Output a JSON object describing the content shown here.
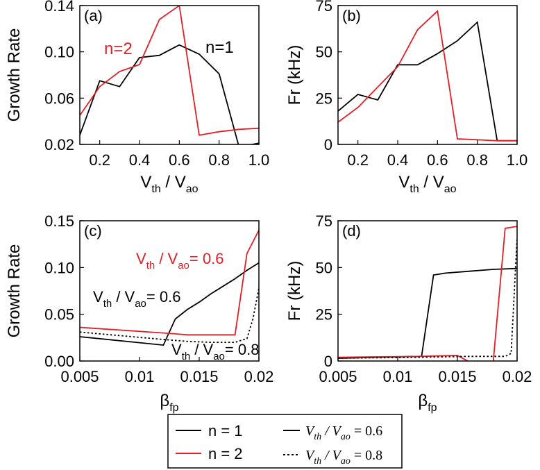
{
  "colors": {
    "n1": "#000000",
    "n2": "#e41e26"
  },
  "chart_data": [
    {
      "type": "line",
      "panel_label": "(a)",
      "ylabel": "Growth Rate",
      "xlabel_main": "V",
      "xlabel_sub1": "th",
      "xlabel_mid": " / V",
      "xlabel_sub2": "ao",
      "xlim": [
        0.1,
        1.0
      ],
      "ylim": [
        0.02,
        0.14
      ],
      "xticks": [
        0.2,
        0.4,
        0.6,
        0.8,
        1.0
      ],
      "xtick_labels": [
        "0.2",
        "0.4",
        "0.6",
        "0.8",
        "1.0"
      ],
      "yticks": [
        0.02,
        0.06,
        0.1,
        0.14
      ],
      "ytick_labels": [
        "0.02",
        "0.06",
        "0.10",
        "0.14"
      ],
      "annotations": [
        {
          "text": "n=2",
          "color": "#e41e26"
        },
        {
          "text": "n=1",
          "color": "#000000"
        }
      ],
      "series": [
        {
          "color": "#000000",
          "dash": "solid",
          "x": [
            0.1,
            0.2,
            0.3,
            0.4,
            0.5,
            0.6,
            0.7,
            0.8,
            0.9,
            1.0
          ],
          "y": [
            0.028,
            0.075,
            0.07,
            0.095,
            0.097,
            0.106,
            0.098,
            0.081,
            0.018,
            0.021
          ]
        },
        {
          "color": "#e41e26",
          "dash": "solid",
          "x": [
            0.1,
            0.2,
            0.3,
            0.4,
            0.5,
            0.6,
            0.7,
            0.8,
            0.9,
            1.0
          ],
          "y": [
            0.045,
            0.07,
            0.083,
            0.089,
            0.128,
            0.14,
            0.028,
            0.031,
            0.033,
            0.034
          ]
        }
      ]
    },
    {
      "type": "line",
      "panel_label": "(b)",
      "ylabel": "Fr (kHz)",
      "xlabel_main": "V",
      "xlabel_sub1": "th",
      "xlabel_mid": " / V",
      "xlabel_sub2": "ao",
      "xlim": [
        0.1,
        1.0
      ],
      "ylim": [
        0,
        75
      ],
      "xticks": [
        0.2,
        0.4,
        0.6,
        0.8,
        1.0
      ],
      "xtick_labels": [
        "0.2",
        "0.4",
        "0.6",
        "0.8",
        "1.0"
      ],
      "yticks": [
        0,
        25,
        50,
        75
      ],
      "ytick_labels": [
        "0",
        "25",
        "50",
        "75"
      ],
      "annotations": [],
      "series": [
        {
          "color": "#000000",
          "dash": "solid",
          "x": [
            0.1,
            0.2,
            0.3,
            0.4,
            0.5,
            0.6,
            0.7,
            0.8,
            0.9,
            1.0
          ],
          "y": [
            18,
            27,
            24,
            43,
            43,
            49,
            56,
            66,
            2,
            2
          ]
        },
        {
          "color": "#e41e26",
          "dash": "solid",
          "x": [
            0.1,
            0.2,
            0.3,
            0.4,
            0.5,
            0.6,
            0.7,
            0.8,
            0.9,
            1.0
          ],
          "y": [
            12,
            20,
            31,
            42,
            62,
            72,
            3,
            2.5,
            2,
            2
          ]
        }
      ]
    },
    {
      "type": "line",
      "panel_label": "(c)",
      "ylabel": "Growth Rate",
      "xlabel_main": "β",
      "xlabel_sub1": "fp",
      "xlabel_mid": "",
      "xlabel_sub2": "",
      "xlim": [
        0.005,
        0.02
      ],
      "ylim": [
        0,
        0.15
      ],
      "xticks": [
        0.005,
        0.01,
        0.015,
        0.02
      ],
      "xtick_labels": [
        "0.005",
        "0.01",
        "0.015",
        "0.02"
      ],
      "yticks": [
        0,
        0.05,
        0.1,
        0.15
      ],
      "ytick_labels": [
        "0.00",
        "0.05",
        "0.10",
        "0.15"
      ],
      "annotations": [
        {
          "text": "V_th / V_ao = 0.6",
          "color": "#e41e26"
        },
        {
          "text": "V_th / V_ao = 0.6",
          "color": "#000000"
        },
        {
          "text": "V_th / V_ao = 0.8",
          "color": "#000000"
        }
      ],
      "series": [
        {
          "color": "#000000",
          "dash": "solid",
          "x": [
            0.005,
            0.012,
            0.013,
            0.014,
            0.015,
            0.016,
            0.017,
            0.018,
            0.019,
            0.02
          ],
          "y": [
            0.026,
            0.017,
            0.045,
            0.055,
            0.063,
            0.072,
            0.08,
            0.088,
            0.097,
            0.105
          ]
        },
        {
          "color": "#e41e26",
          "dash": "solid",
          "x": [
            0.005,
            0.012,
            0.013,
            0.014,
            0.015,
            0.016,
            0.017,
            0.018,
            0.019,
            0.02
          ],
          "y": [
            0.036,
            0.03,
            0.029,
            0.028,
            0.028,
            0.028,
            0.028,
            0.028,
            0.115,
            0.14
          ]
        },
        {
          "color": "#000000",
          "dash": "dotted",
          "x": [
            0.005,
            0.012,
            0.014,
            0.016,
            0.017,
            0.018,
            0.019,
            0.0195,
            0.02
          ],
          "y": [
            0.031,
            0.023,
            0.021,
            0.02,
            0.02,
            0.02,
            0.024,
            0.045,
            0.078
          ]
        }
      ]
    },
    {
      "type": "line",
      "panel_label": "(d)",
      "ylabel": "Fr (kHz)",
      "xlabel_main": "β",
      "xlabel_sub1": "fp",
      "xlabel_mid": "",
      "xlabel_sub2": "",
      "xlim": [
        0.005,
        0.02
      ],
      "ylim": [
        0,
        75
      ],
      "xticks": [
        0.005,
        0.01,
        0.015,
        0.02
      ],
      "xtick_labels": [
        "0.005",
        "0.01",
        "0.015",
        "0.02"
      ],
      "yticks": [
        0,
        25,
        50,
        75
      ],
      "ytick_labels": [
        "0",
        "25",
        "50",
        "75"
      ],
      "annotations": [],
      "series": [
        {
          "color": "#000000",
          "dash": "solid",
          "x": [
            0.005,
            0.012,
            0.013,
            0.014,
            0.016,
            0.018,
            0.02
          ],
          "y": [
            1.5,
            2.5,
            46,
            47,
            48,
            49,
            49.5
          ]
        },
        {
          "color": "#e41e26",
          "dash": "solid",
          "x": [
            0.005,
            0.012,
            0.015,
            0.016,
            0.017,
            0.018,
            0.019,
            0.02
          ],
          "y": [
            2,
            2.5,
            3,
            -0.5,
            -0.5,
            -0.5,
            71,
            72
          ]
        },
        {
          "color": "#000000",
          "dash": "dotted",
          "x": [
            0.005,
            0.012,
            0.016,
            0.018,
            0.019,
            0.0195,
            0.02
          ],
          "y": [
            1.5,
            2,
            2.5,
            2.5,
            2.5,
            4,
            66
          ]
        }
      ]
    }
  ],
  "legend": {
    "items": [
      {
        "label": "n = 1",
        "color": "#000000",
        "dash": "solid"
      },
      {
        "label": "n = 2",
        "color": "#e41e26",
        "dash": "solid"
      },
      {
        "label_main": "V",
        "label_sub1": "th",
        "label_mid": " / V",
        "label_sub2": "ao",
        "label_value": " = 0.6",
        "color": "#000000",
        "dash": "solid"
      },
      {
        "label_main": "V",
        "label_sub1": "th",
        "label_mid": " / V",
        "label_sub2": "ao",
        "label_value": " = 0.8",
        "color": "#000000",
        "dash": "dotted"
      }
    ]
  }
}
